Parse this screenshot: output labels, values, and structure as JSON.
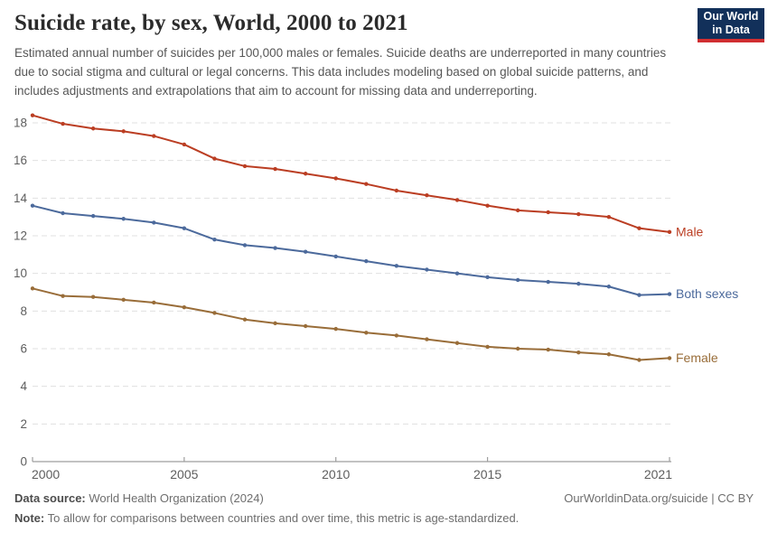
{
  "header": {
    "title": "Suicide rate, by sex, World, 2000 to 2021",
    "subtitle": "Estimated annual number of suicides per 100,000 males or females. Suicide deaths are underreported in many countries due to social stigma and cultural or legal concerns. This data includes modeling based on global suicide patterns, and includes adjustments and extrapolations that aim to account for missing data and underreporting.",
    "logo": {
      "line1": "Our World",
      "line2": "in Data",
      "background_color": "#12305a",
      "accent_color": "#d12e31"
    }
  },
  "chart_data": {
    "type": "line",
    "title": "Suicide rate, by sex, World, 2000 to 2021",
    "xlabel": "",
    "ylabel": "",
    "x": [
      2000,
      2001,
      2002,
      2003,
      2004,
      2005,
      2006,
      2007,
      2008,
      2009,
      2010,
      2011,
      2012,
      2013,
      2014,
      2015,
      2016,
      2017,
      2018,
      2019,
      2020,
      2021
    ],
    "series": [
      {
        "name": "Male",
        "color": "#bb3e23",
        "values": [
          18.4,
          17.95,
          17.7,
          17.55,
          17.3,
          16.85,
          16.1,
          15.7,
          15.55,
          15.3,
          15.05,
          14.75,
          14.4,
          14.15,
          13.9,
          13.6,
          13.35,
          13.25,
          13.15,
          13.0,
          12.4,
          12.2
        ]
      },
      {
        "name": "Both sexes",
        "color": "#4c6a9c",
        "values": [
          13.6,
          13.2,
          13.05,
          12.9,
          12.7,
          12.4,
          11.8,
          11.5,
          11.35,
          11.15,
          10.9,
          10.65,
          10.4,
          10.2,
          10.0,
          9.8,
          9.65,
          9.55,
          9.45,
          9.3,
          8.85,
          8.9
        ]
      },
      {
        "name": "Female",
        "color": "#996d39",
        "values": [
          9.2,
          8.8,
          8.75,
          8.6,
          8.45,
          8.2,
          7.9,
          7.55,
          7.35,
          7.2,
          7.05,
          6.85,
          6.7,
          6.5,
          6.3,
          6.1,
          6.0,
          5.95,
          5.8,
          5.7,
          5.4,
          5.5
        ]
      }
    ],
    "ylim": [
      0,
      18
    ],
    "yticks": [
      0,
      2,
      4,
      6,
      8,
      10,
      12,
      14,
      16,
      18
    ],
    "xticks": [
      2000,
      2005,
      2010,
      2015,
      2021
    ],
    "grid": "horizontal-dashed",
    "legend": "line-end-labels",
    "grid_color": "#e0e0e0",
    "axis_color": "#9e9e9e"
  },
  "footer": {
    "data_source_label": "Data source:",
    "data_source_value": " World Health Organization (2024)",
    "citation": "OurWorldinData.org/suicide | CC BY",
    "note_label": "Note:",
    "note_value": " To allow for comparisons between countries and over time, this metric is age-standardized."
  }
}
